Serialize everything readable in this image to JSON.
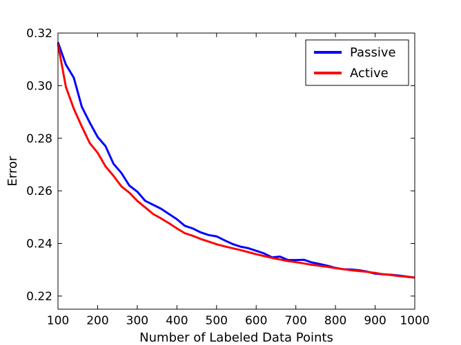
{
  "chart_data": {
    "type": "line",
    "title": "",
    "xlabel": "Number of Labeled Data Points",
    "ylabel": "Error",
    "xlim": [
      100,
      1000
    ],
    "ylim": [
      0.215,
      0.32
    ],
    "xticks": [
      "100",
      "200",
      "300",
      "400",
      "500",
      "600",
      "700",
      "800",
      "900",
      "1000"
    ],
    "yticks": [
      "0.22",
      "0.24",
      "0.26",
      "0.28",
      "0.30",
      "0.32"
    ],
    "grid": false,
    "legend_position": "top-right",
    "series": [
      {
        "name": "Passive",
        "color": "#0000ff",
        "x": [
          100,
          120,
          140,
          160,
          180,
          200,
          220,
          240,
          260,
          280,
          300,
          320,
          340,
          360,
          380,
          400,
          420,
          440,
          460,
          480,
          500,
          520,
          540,
          560,
          580,
          600,
          620,
          640,
          660,
          680,
          700,
          720,
          740,
          760,
          780,
          800,
          820,
          840,
          860,
          880,
          900,
          920,
          940,
          960,
          980,
          1000
        ],
        "y": [
          0.3165,
          0.308,
          0.303,
          0.292,
          0.286,
          0.2805,
          0.277,
          0.2703,
          0.2668,
          0.262,
          0.2597,
          0.2562,
          0.2547,
          0.2532,
          0.2512,
          0.2492,
          0.2467,
          0.2457,
          0.2442,
          0.2432,
          0.2427,
          0.2412,
          0.2398,
          0.2388,
          0.2382,
          0.2372,
          0.2362,
          0.2347,
          0.235,
          0.2337,
          0.2337,
          0.2338,
          0.2328,
          0.2322,
          0.2315,
          0.2307,
          0.2302,
          0.2301,
          0.2298,
          0.2293,
          0.2285,
          0.2283,
          0.2281,
          0.2278,
          0.2274,
          0.227
        ]
      },
      {
        "name": "Active",
        "color": "#ff0000",
        "x": [
          100,
          120,
          140,
          160,
          180,
          200,
          220,
          240,
          260,
          280,
          300,
          320,
          340,
          360,
          380,
          400,
          420,
          440,
          460,
          480,
          500,
          520,
          540,
          560,
          580,
          600,
          620,
          640,
          660,
          680,
          700,
          720,
          740,
          760,
          780,
          800,
          820,
          840,
          860,
          880,
          900,
          920,
          940,
          960,
          980,
          1000
        ],
        "y": [
          0.3158,
          0.2995,
          0.2912,
          0.2845,
          0.2782,
          0.2745,
          0.2693,
          0.2657,
          0.2617,
          0.2593,
          0.2562,
          0.2537,
          0.2512,
          0.2495,
          0.2477,
          0.2457,
          0.2439,
          0.2429,
          0.2417,
          0.2407,
          0.2397,
          0.2389,
          0.2382,
          0.2375,
          0.2367,
          0.2359,
          0.2352,
          0.2345,
          0.2339,
          0.2333,
          0.2329,
          0.2324,
          0.2319,
          0.2315,
          0.2311,
          0.2306,
          0.2302,
          0.2298,
          0.2295,
          0.2292,
          0.2288,
          0.2283,
          0.228,
          0.2276,
          0.2273,
          0.227
        ]
      }
    ]
  }
}
